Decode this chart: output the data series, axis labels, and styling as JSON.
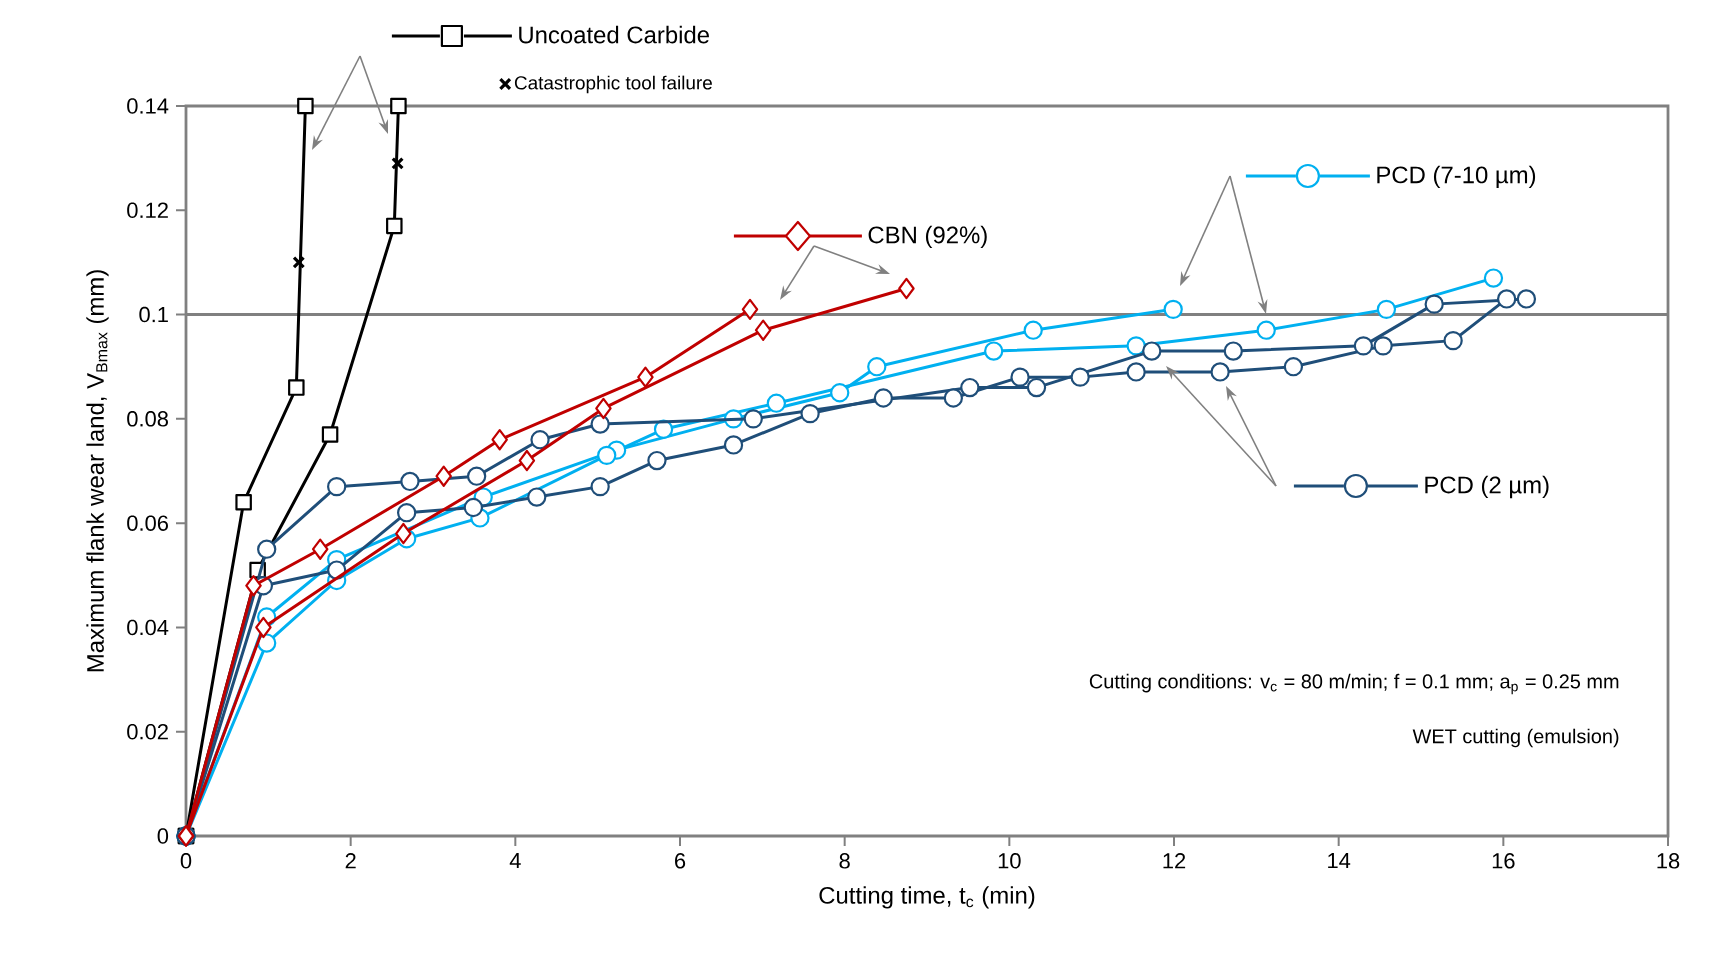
{
  "chart_data": {
    "type": "line",
    "xlabel": "Cutting time, t$_{c}$ (min)",
    "ylabel": "Maximum flank wear land, V$_{Bmax}$ (mm)",
    "xlim": [
      0,
      18
    ],
    "ylim": [
      0,
      0.14
    ],
    "xticks": [
      0,
      2,
      4,
      6,
      8,
      10,
      12,
      14,
      16,
      18
    ],
    "yticks": [
      0,
      0.02,
      0.04,
      0.06,
      0.08,
      0.1,
      0.12,
      0.14
    ],
    "legend": "top",
    "grid": false,
    "ref_lines": [
      {
        "axis": "y",
        "value": 0.1,
        "color": "#808080"
      }
    ],
    "annotations": [
      "Cutting conditions: v$_{c}$ = 80 m/min; f = 0.1 mm; a$_{p}$ = 0.25 mm",
      "WET cutting (emulsion)"
    ],
    "series": [
      {
        "name": "Uncoated Carbide",
        "color": "#000000",
        "marker": "square",
        "x": [
          0,
          0.7,
          1.34,
          1.45
        ],
        "values": [
          0,
          0.064,
          0.086,
          0.14
        ]
      },
      {
        "color": "#000000",
        "marker": "square",
        "x": [
          0,
          0.87,
          1.75,
          2.53,
          2.58
        ],
        "values": [
          0,
          0.051,
          0.077,
          0.117,
          0.14
        ]
      },
      {
        "name": "Catastrophic tool failure",
        "type": "scatter",
        "color": "#000000",
        "marker": "cross",
        "x": [
          1.37,
          2.57
        ],
        "values": [
          0.11,
          0.129
        ]
      },
      {
        "name": "CBN (92%)",
        "color": "#c00000",
        "marker": "diamond",
        "x": [
          0,
          0.82,
          1.63,
          3.13,
          3.81,
          5.58,
          6.85
        ],
        "values": [
          0,
          0.048,
          0.055,
          0.069,
          0.076,
          0.088,
          0.101
        ]
      },
      {
        "color": "#c00000",
        "marker": "diamond",
        "x": [
          0,
          0.94,
          2.64,
          4.14,
          5.07,
          7.01,
          8.75
        ],
        "values": [
          0,
          0.04,
          0.058,
          0.072,
          0.082,
          0.097,
          0.105
        ]
      },
      {
        "name": "PCD (7-10 µm)",
        "color": "#00b0f0",
        "marker": "circle",
        "x": [
          0,
          0.98,
          1.83,
          3.61,
          5.23,
          6.65,
          7.94,
          8.39,
          10.29,
          11.99
        ],
        "values": [
          0,
          0.042,
          0.053,
          0.065,
          0.074,
          0.08,
          0.085,
          0.09,
          0.097,
          0.101
        ]
      },
      {
        "color": "#00b0f0",
        "marker": "circle",
        "x": [
          0,
          0.98,
          1.83,
          2.68,
          3.57,
          5.11,
          5.8,
          7.17,
          9.81,
          11.54,
          13.12,
          14.58,
          15.88
        ],
        "values": [
          0,
          0.037,
          0.049,
          0.057,
          0.061,
          0.073,
          0.078,
          0.083,
          0.093,
          0.094,
          0.097,
          0.101,
          0.107
        ]
      },
      {
        "name": "PCD (2 µm)",
        "color": "#1f4e79",
        "marker": "circle",
        "x": [
          0,
          0.98,
          1.83,
          2.72,
          3.53,
          4.3,
          5.03,
          6.89,
          9.52,
          10.33,
          11.73,
          12.72,
          14.3,
          15.16,
          16.28
        ],
        "values": [
          0,
          0.055,
          0.067,
          0.068,
          0.069,
          0.076,
          0.079,
          0.08,
          0.086,
          0.086,
          0.093,
          0.093,
          0.094,
          0.102,
          0.103
        ]
      },
      {
        "color": "#1f4e79",
        "marker": "circle",
        "x": [
          0,
          0.94,
          1.83,
          2.68,
          3.49,
          4.26,
          5.03,
          5.72,
          6.65,
          7.58,
          8.47,
          9.32,
          10.13,
          10.86,
          11.54,
          12.56,
          13.45,
          14.54,
          15.39,
          16.04
        ],
        "values": [
          0,
          0.048,
          0.051,
          0.062,
          0.063,
          0.065,
          0.067,
          0.072,
          0.075,
          0.081,
          0.084,
          0.084,
          0.088,
          0.088,
          0.089,
          0.089,
          0.09,
          0.094,
          0.095,
          0.103
        ]
      }
    ]
  }
}
